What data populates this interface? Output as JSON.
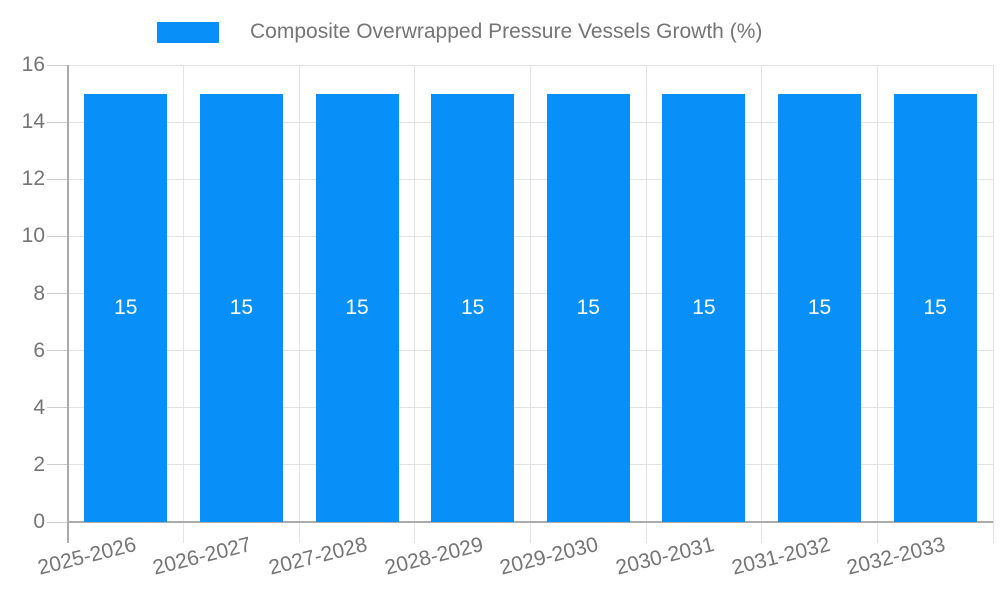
{
  "chart_data": {
    "type": "bar",
    "title": "Composite Overwrapped Pressure Vessels Growth (%)",
    "legend_position": "top",
    "categories": [
      "2025-2026",
      "2026-2027",
      "2027-2028",
      "2028-2029",
      "2029-2030",
      "2030-2031",
      "2031-2032",
      "2032-2033"
    ],
    "series": [
      {
        "name": "Composite Overwrapped Pressure Vessels Growth (%)",
        "values": [
          15,
          15,
          15,
          15,
          15,
          15,
          15,
          15
        ]
      }
    ],
    "bar_value_labels": [
      "15",
      "15",
      "15",
      "15",
      "15",
      "15",
      "15",
      "15"
    ],
    "xlabel": "",
    "ylabel": "",
    "ylim": [
      0,
      16
    ],
    "yticks": [
      0,
      2,
      4,
      6,
      8,
      10,
      12,
      14,
      16
    ],
    "grid": true,
    "x_tick_rotation_deg": -14,
    "colors": {
      "bar": "#0990F8",
      "gridline": "#e3e3e3",
      "axis_line": "#ababab",
      "tick_mark": "#cccccc",
      "tick_text": "#757575",
      "legend_text": "#757575",
      "bar_label_text": "#ffffff",
      "background": "#ffffff"
    }
  }
}
